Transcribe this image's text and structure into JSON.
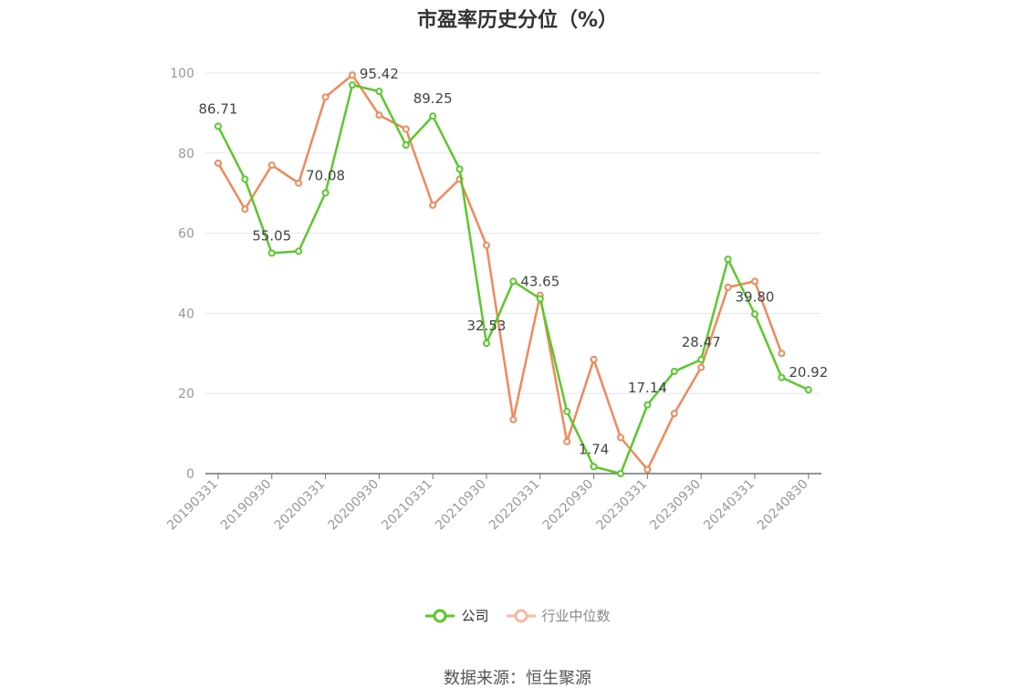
{
  "chart_data": {
    "type": "line",
    "title": "市盈率历史分位（%）",
    "x": [
      "20190331",
      "20190630",
      "20190930",
      "20191231",
      "20200331",
      "20200630",
      "20200930",
      "20201231",
      "20210331",
      "20210630",
      "20210930",
      "20211231",
      "20220331",
      "20220630",
      "20220930",
      "20221231",
      "20230331",
      "20230630",
      "20230930",
      "20231231",
      "20240331",
      "20240630",
      "20240830"
    ],
    "x_tick_labels": [
      "20190331",
      "20190930",
      "20200331",
      "20200930",
      "20210331",
      "20210930",
      "20220331",
      "20220930",
      "20230331",
      "20230930",
      "20240331",
      "20240830"
    ],
    "y_ticks": [
      0,
      20,
      40,
      60,
      80,
      100
    ],
    "ylim": [
      0,
      100
    ],
    "grid": true,
    "legend_position": "bottom-center",
    "series": [
      {
        "name": "公司",
        "color": "#5ac82d",
        "values": [
          86.71,
          73.5,
          55.05,
          55.5,
          70.08,
          97.0,
          95.42,
          82.0,
          89.25,
          76.0,
          32.53,
          48.0,
          43.65,
          15.5,
          1.74,
          0.0,
          17.14,
          25.5,
          28.47,
          53.5,
          39.8,
          24.0,
          20.92
        ],
        "data_labels": {
          "0": "86.71",
          "2": "55.05",
          "4": "70.08",
          "6": "95.42",
          "8": "89.25",
          "10": "32.53",
          "12": "43.65",
          "14": "1.74",
          "16": "17.14",
          "18": "28.47",
          "20": "39.80",
          "22": "20.92"
        }
      },
      {
        "name": "行业中位数",
        "color": "#f0895a",
        "values": [
          77.5,
          66.0,
          77.0,
          72.5,
          94.0,
          99.5,
          89.5,
          86.0,
          67.0,
          73.5,
          57.0,
          13.5,
          44.5,
          8.0,
          28.5,
          9.0,
          1.0,
          15.0,
          26.5,
          46.5,
          48.0,
          30.0,
          null
        ]
      }
    ]
  },
  "legend": [
    {
      "label": "公司",
      "color": "#5ac82d"
    },
    {
      "label": "行业中位数",
      "color": "#f6b9a0"
    }
  ],
  "source": "数据来源：恒生聚源"
}
